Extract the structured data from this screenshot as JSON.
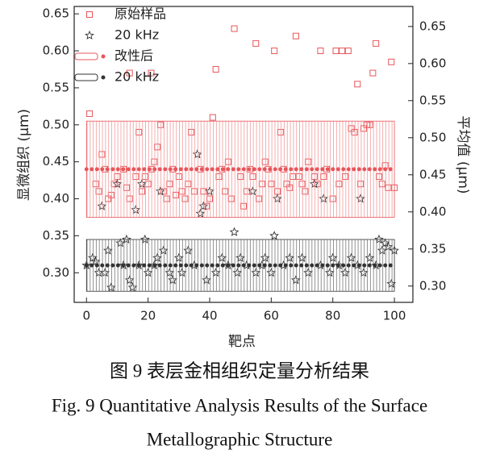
{
  "chart_data": {
    "type": "scatter",
    "xlabel": "靶点",
    "ylabel": "显微组织 (μm)",
    "y2label": "平均值 (μm)",
    "xlim": [
      -4,
      106
    ],
    "xticks": [
      0,
      20,
      40,
      60,
      80,
      100
    ],
    "ylim": [
      0.26,
      0.66
    ],
    "yticks": [
      {
        "value": 0.3,
        "label": "0.30"
      },
      0.35,
      {
        "value": 0.4,
        "label": "0.40"
      },
      0.45,
      {
        "value": 0.5,
        "label": "0.50"
      },
      0.55,
      {
        "value": 0.6,
        "label": "0.60"
      },
      0.65
    ],
    "y2lim": [
      0.278,
      0.677
    ],
    "y2ticks": [
      {
        "value": 0.3,
        "label": "0.30"
      },
      0.35,
      {
        "value": 0.4,
        "label": "0.40"
      },
      0.45,
      {
        "value": 0.5,
        "label": "0.50"
      },
      0.55,
      {
        "value": 0.6,
        "label": "0.60"
      },
      0.65
    ],
    "legend": "upper left",
    "series": [
      {
        "name": "原始样品",
        "color": "#e8555a",
        "marker": "square",
        "x": [
          1,
          3,
          4,
          5,
          6,
          7,
          8,
          9,
          10,
          12,
          13,
          14,
          14,
          16,
          17,
          18,
          19,
          20,
          21,
          21,
          22,
          23,
          24,
          25,
          26,
          27,
          28,
          29,
          30,
          31,
          32,
          33,
          34,
          35,
          37,
          38,
          39,
          40,
          41,
          42,
          43,
          44,
          45,
          46,
          47,
          48,
          50,
          51,
          52,
          53,
          54,
          55,
          56,
          57,
          58,
          59,
          60,
          61,
          62,
          63,
          64,
          65,
          66,
          67,
          68,
          69,
          70,
          71,
          72,
          74,
          75,
          76,
          77,
          78,
          80,
          81,
          82,
          83,
          84,
          85,
          86,
          87,
          88,
          89,
          90,
          91,
          92,
          93,
          94,
          95,
          96,
          97,
          98,
          99,
          100
        ],
        "values": [
          0.515,
          0.42,
          0.41,
          0.46,
          0.44,
          0.4,
          0.405,
          0.42,
          0.43,
          0.44,
          0.415,
          0.4,
          0.57,
          0.43,
          0.49,
          0.41,
          0.43,
          0.42,
          0.44,
          0.57,
          0.45,
          0.47,
          0.5,
          0.41,
          0.4,
          0.42,
          0.44,
          0.405,
          0.43,
          0.41,
          0.4,
          0.42,
          0.49,
          0.41,
          0.44,
          0.41,
          0.39,
          0.4,
          0.51,
          0.575,
          0.43,
          0.44,
          0.41,
          0.45,
          0.4,
          0.63,
          0.43,
          0.39,
          0.41,
          0.44,
          0.43,
          0.61,
          0.4,
          0.42,
          0.45,
          0.44,
          0.42,
          0.6,
          0.41,
          0.49,
          0.44,
          0.42,
          0.415,
          0.43,
          0.62,
          0.43,
          0.42,
          0.41,
          0.45,
          0.43,
          0.42,
          0.6,
          0.43,
          0.44,
          0.4,
          0.6,
          0.42,
          0.6,
          0.43,
          0.6,
          0.495,
          0.49,
          0.555,
          0.42,
          0.495,
          0.5,
          0.5,
          0.57,
          0.61,
          0.43,
          0.42,
          0.445,
          0.415,
          0.585,
          0.415
        ]
      },
      {
        "name": "20 kHz",
        "color": "#333333",
        "marker": "star",
        "x": [
          0,
          2,
          3,
          4,
          5,
          6,
          7,
          8,
          10,
          11,
          12,
          13,
          14,
          15,
          16,
          17,
          18,
          19,
          20,
          22,
          23,
          24,
          25,
          27,
          28,
          30,
          31,
          33,
          35,
          36,
          37,
          38,
          39,
          40,
          42,
          44,
          46,
          48,
          49,
          50,
          52,
          54,
          55,
          57,
          58,
          60,
          61,
          62,
          64,
          66,
          68,
          70,
          72,
          74,
          76,
          77,
          79,
          80,
          82,
          84,
          86,
          88,
          89,
          90,
          92,
          94,
          95,
          96,
          97,
          98,
          99,
          100
        ],
        "values": [
          0.31,
          0.32,
          0.315,
          0.3,
          0.39,
          0.3,
          0.33,
          0.28,
          0.42,
          0.34,
          0.31,
          0.345,
          0.29,
          0.28,
          0.385,
          0.31,
          0.42,
          0.345,
          0.3,
          0.31,
          0.32,
          0.41,
          0.33,
          0.3,
          0.29,
          0.32,
          0.3,
          0.33,
          0.31,
          0.46,
          0.38,
          0.39,
          0.29,
          0.41,
          0.3,
          0.32,
          0.31,
          0.355,
          0.3,
          0.32,
          0.31,
          0.41,
          0.3,
          0.31,
          0.32,
          0.3,
          0.35,
          0.4,
          0.31,
          0.32,
          0.29,
          0.32,
          0.3,
          0.42,
          0.31,
          0.4,
          0.3,
          0.32,
          0.31,
          0.3,
          0.32,
          0.31,
          0.4,
          0.3,
          0.32,
          0.31,
          0.345,
          0.33,
          0.34,
          0.335,
          0.285,
          0.33
        ]
      },
      {
        "name": "改性后",
        "color": "#e8555a",
        "marker": "band",
        "mean": 0.44,
        "band": [
          0.375,
          0.505
        ],
        "span": [
          0,
          100
        ]
      },
      {
        "name": "20 kHz",
        "color": "#333333",
        "marker": "band",
        "mean": 0.31,
        "band": [
          0.275,
          0.345
        ],
        "span": [
          0,
          100
        ]
      }
    ]
  },
  "caption": [
    "图 9  表层金相组织定量分析结果",
    "Fig. 9 Quantitative Analysis Results of the Surface",
    "Metallographic Structure"
  ]
}
